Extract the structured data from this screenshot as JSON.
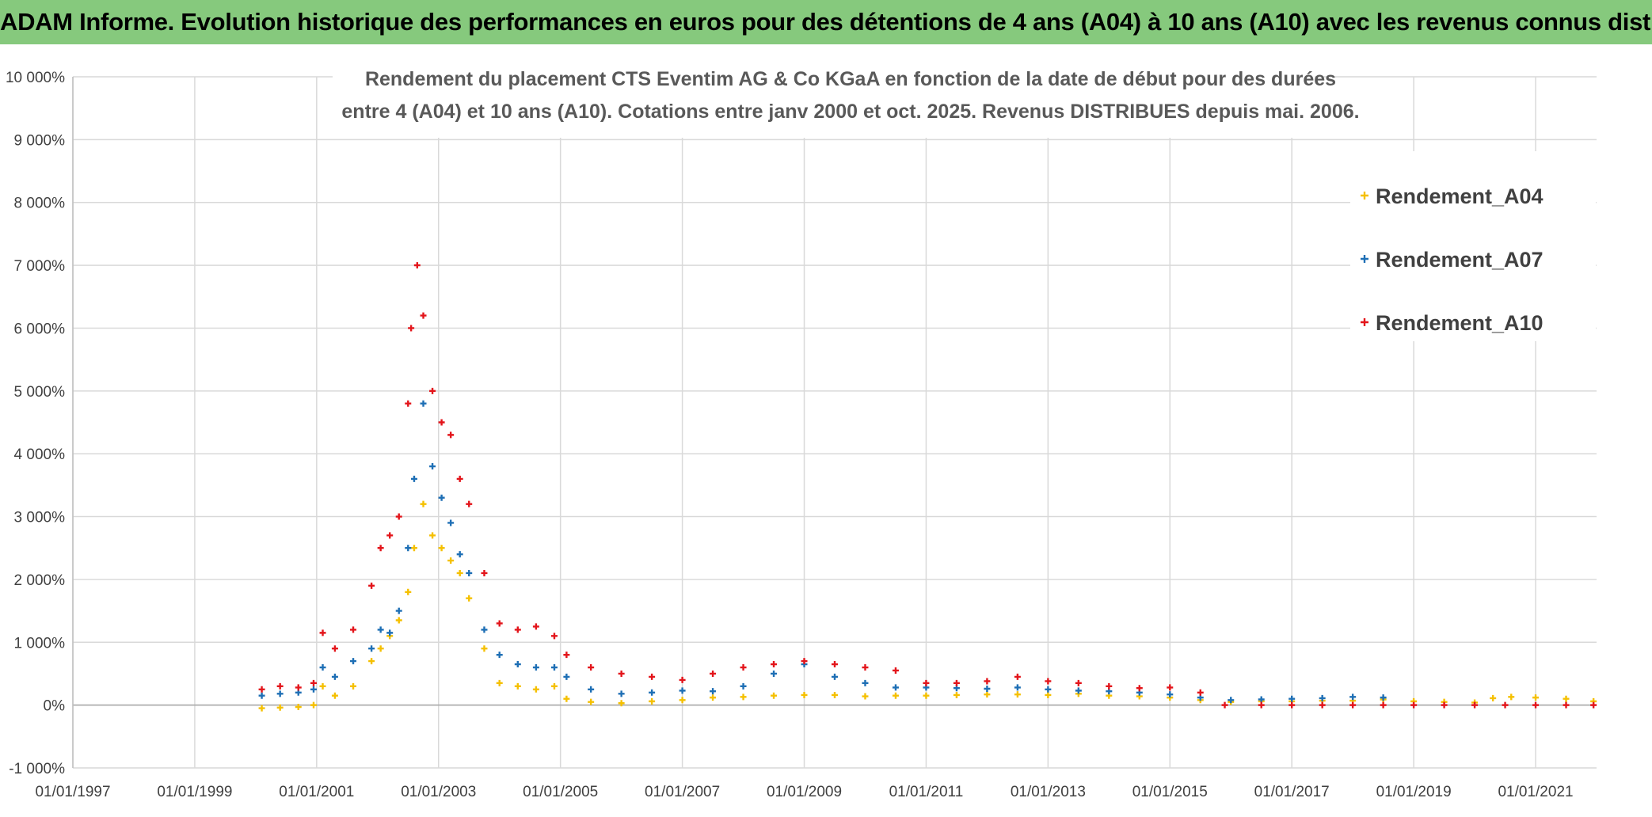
{
  "banner": {
    "title": "ADAM Informe. Evolution historique des performances en euros pour des détentions de 4 ans (A04) à 10 ans (A10) avec les revenus connus distribués"
  },
  "colors": {
    "banner_bg": "#86c97d",
    "A04": "#f5c000",
    "A07": "#1e6fb5",
    "A10": "#e3151b",
    "grid": "#d9d9d9"
  },
  "chart_data": {
    "type": "scatter",
    "title_lines": [
      "Rendement du placement CTS Eventim AG & Co KGaA en fonction de la date de début pour des durées",
      "entre 4 (A04) et 10 ans (A10). Cotations entre janv 2000 et oct. 2025. Revenus DISTRIBUES depuis mai. 2006."
    ],
    "xlabel": "",
    "ylabel": "",
    "x_ticks": [
      "01/01/1997",
      "01/01/1999",
      "01/01/2001",
      "01/01/2003",
      "01/01/2005",
      "01/01/2007",
      "01/01/2009",
      "01/01/2011",
      "01/01/2013",
      "01/01/2015",
      "01/01/2017",
      "01/01/2019",
      "01/01/2021"
    ],
    "xlim": [
      1997.0,
      2022.0
    ],
    "y_ticks": [
      "-1 000%",
      "0%",
      "1 000%",
      "2 000%",
      "3 000%",
      "4 000%",
      "5 000%",
      "6 000%",
      "7 000%",
      "8 000%",
      "9 000%",
      "10 000%"
    ],
    "y_tick_values": [
      -1000,
      0,
      1000,
      2000,
      3000,
      4000,
      5000,
      6000,
      7000,
      8000,
      9000,
      10000
    ],
    "ylim": [
      -1000,
      10000
    ],
    "grid": true,
    "legend_position": "top-right",
    "marker": "+",
    "series": [
      {
        "name": "Rendement_A04",
        "color": "#f5c000",
        "x": [
          2000.1,
          2000.4,
          2000.7,
          2000.95,
          2001.1,
          2001.3,
          2001.6,
          2001.9,
          2002.05,
          2002.2,
          2002.35,
          2002.5,
          2002.6,
          2002.75,
          2002.9,
          2003.05,
          2003.2,
          2003.35,
          2003.5,
          2003.75,
          2004.0,
          2004.3,
          2004.6,
          2004.9,
          2005.1,
          2005.5,
          2006.0,
          2006.5,
          2007.0,
          2007.5,
          2008.0,
          2008.5,
          2009.0,
          2009.5,
          2010.0,
          2010.5,
          2011.0,
          2011.5,
          2012.0,
          2012.5,
          2013.0,
          2013.5,
          2014.0,
          2014.5,
          2015.0,
          2015.5,
          2016.0,
          2016.5,
          2017.0,
          2017.5,
          2018.0,
          2018.5,
          2019.0,
          2019.5,
          2020.0,
          2020.3,
          2020.6,
          2021.0,
          2021.5,
          2021.95
        ],
        "y": [
          -50,
          -40,
          -30,
          0,
          300,
          150,
          300,
          700,
          900,
          1100,
          1350,
          1800,
          2500,
          3200,
          2700,
          2500,
          2300,
          2100,
          1700,
          900,
          350,
          300,
          250,
          300,
          100,
          50,
          30,
          60,
          80,
          120,
          130,
          150,
          160,
          160,
          140,
          150,
          150,
          160,
          170,
          170,
          160,
          180,
          150,
          140,
          120,
          80,
          50,
          60,
          60,
          70,
          70,
          90,
          60,
          50,
          40,
          110,
          130,
          120,
          100,
          60
        ]
      },
      {
        "name": "Rendement_A07",
        "color": "#1e6fb5",
        "x": [
          2000.1,
          2000.4,
          2000.7,
          2000.95,
          2001.1,
          2001.3,
          2001.6,
          2001.9,
          2002.05,
          2002.2,
          2002.35,
          2002.5,
          2002.6,
          2002.75,
          2002.9,
          2003.05,
          2003.2,
          2003.35,
          2003.5,
          2003.75,
          2004.0,
          2004.3,
          2004.6,
          2004.9,
          2005.1,
          2005.5,
          2006.0,
          2006.5,
          2007.0,
          2007.5,
          2008.0,
          2008.5,
          2009.0,
          2009.5,
          2010.0,
          2010.5,
          2011.0,
          2011.5,
          2012.0,
          2012.5,
          2013.0,
          2013.5,
          2014.0,
          2014.5,
          2015.0,
          2015.5,
          2016.0,
          2016.5,
          2017.0,
          2017.5,
          2018.0,
          2018.5
        ],
        "y": [
          150,
          180,
          200,
          250,
          600,
          450,
          700,
          900,
          1200,
          1150,
          1500,
          2500,
          3600,
          4800,
          3800,
          3300,
          2900,
          2400,
          2100,
          1200,
          800,
          650,
          600,
          600,
          450,
          250,
          180,
          200,
          230,
          220,
          300,
          500,
          650,
          450,
          350,
          280,
          280,
          270,
          260,
          280,
          250,
          230,
          220,
          200,
          170,
          120,
          80,
          90,
          100,
          110,
          130,
          120
        ]
      },
      {
        "name": "Rendement_A10",
        "color": "#e3151b",
        "x": [
          2000.1,
          2000.4,
          2000.7,
          2000.95,
          2001.1,
          2001.3,
          2001.6,
          2001.9,
          2002.05,
          2002.2,
          2002.35,
          2002.5,
          2002.55,
          2002.65,
          2002.75,
          2002.9,
          2003.05,
          2003.2,
          2003.35,
          2003.5,
          2003.75,
          2004.0,
          2004.3,
          2004.6,
          2004.9,
          2005.1,
          2005.5,
          2006.0,
          2006.5,
          2007.0,
          2007.5,
          2008.0,
          2008.5,
          2009.0,
          2009.5,
          2010.0,
          2010.5,
          2011.0,
          2011.5,
          2012.0,
          2012.5,
          2013.0,
          2013.5,
          2014.0,
          2014.5,
          2015.0,
          2015.5,
          2015.9,
          2016.5,
          2017.0,
          2017.5,
          2018.0,
          2018.5,
          2019.0,
          2019.5,
          2020.0,
          2020.5,
          2021.0,
          2021.5,
          2021.95
        ],
        "y": [
          250,
          300,
          280,
          350,
          1150,
          900,
          1200,
          1900,
          2500,
          2700,
          3000,
          4800,
          6000,
          7000,
          6200,
          5000,
          4500,
          4300,
          3600,
          3200,
          2100,
          1300,
          1200,
          1250,
          1100,
          800,
          600,
          500,
          450,
          400,
          500,
          600,
          650,
          700,
          650,
          600,
          550,
          350,
          350,
          380,
          450,
          380,
          350,
          300,
          270,
          280,
          200,
          0,
          0,
          0,
          0,
          0,
          0,
          0,
          0,
          0,
          0,
          0,
          0,
          0
        ]
      }
    ]
  }
}
